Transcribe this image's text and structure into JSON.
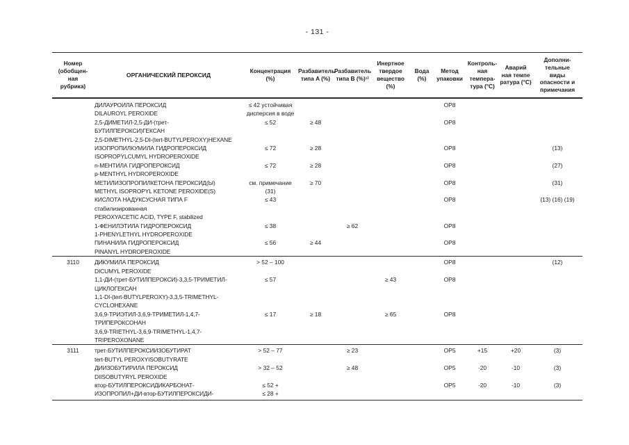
{
  "page": {
    "number_label": "- 131 -"
  },
  "table": {
    "headers": {
      "num": "Номер\n(обобщен-\nная\nрубрика)",
      "name": "ОРГАНИЧЕСКИЙ ПЕРОКСИД",
      "conc": "Концентрация\n(%)",
      "dil_a": "Разбавитель\nтипа A (%)",
      "dil_b": "Разбавитель\nтипа B (%)¹⁾",
      "inert": "Инертное\nтвердое\nвещество\n(%)",
      "water": "Вода\n(%)",
      "pack": "Метод\nупаковки",
      "ctrl": "Контроль-\nная\nтемпера-\nтура (°C)",
      "emerg": "Аварий\nная темпе\nратура (°C)",
      "rem": "Дополни-\nтельные\nвиды\nопасности и\nпримечания"
    },
    "rows": [
      {
        "num": "",
        "name": "ДИЛАУРОИЛА ПЕРОКСИД\nDILAUROYL PEROXIDE",
        "conc": "≤ 42 устойчивая\nдисперсия в воде",
        "dil_a": "",
        "dil_b": "",
        "inert": "",
        "water": "",
        "pack": "OP8",
        "ctrl": "",
        "emerg": "",
        "rem": ""
      },
      {
        "num": "",
        "name": "2,5-ДИМЕТИЛ-2,5-ДИ-(трет-\nБУТИЛПЕРОКСИ)ГЕКСАН\n2,5-DIMETHYL-2,5-DI-(tert-BUTYLPEROXY)HEXANE",
        "conc": "≤ 52",
        "dil_a": "≥ 48",
        "dil_b": "",
        "inert": "",
        "water": "",
        "pack": "OP8",
        "ctrl": "",
        "emerg": "",
        "rem": ""
      },
      {
        "num": "",
        "name": "ИЗОПРОПИЛКУМИЛА ГИДРОПЕРОКСИД\nISOPROPYLCUMYL HYDROPEROXIDE",
        "conc": "≤ 72",
        "dil_a": "≥ 28",
        "dil_b": "",
        "inert": "",
        "water": "",
        "pack": "OP8",
        "ctrl": "",
        "emerg": "",
        "rem": "(13)"
      },
      {
        "num": "",
        "name": "n-МЕНТИЛА ГИДРОПЕРОКСИД\np-MENTHYL HYDROPEROXIDE",
        "conc": "≤ 72",
        "dil_a": "≥ 28",
        "dil_b": "",
        "inert": "",
        "water": "",
        "pack": "OP8",
        "ctrl": "",
        "emerg": "",
        "rem": "(27)"
      },
      {
        "num": "",
        "name": "МЕТИЛИЗОПРОПИЛКЕТОНА ПЕРОКСИД(Ы)\nMETHYL ISOPROPYL KETONE PEROXIDE(S)",
        "conc": "см. примечание\n(31)",
        "dil_a": "≥ 70",
        "dil_b": "",
        "inert": "",
        "water": "",
        "pack": "OP8",
        "ctrl": "",
        "emerg": "",
        "rem": "(31)"
      },
      {
        "num": "",
        "name": "КИСЛОТА НАДУКСУСНАЯ ТИПА F\nстабилизированная\nPEROXYACETIC ACID, TYPE F, stabilized",
        "conc": "≤ 43",
        "dil_a": "",
        "dil_b": "",
        "inert": "",
        "water": "",
        "pack": "OP8",
        "ctrl": "",
        "emerg": "",
        "rem": "(13) (16) (19)"
      },
      {
        "num": "",
        "name": "1-ФЕНИЛЭТИЛА ГИДРОПЕРОКСИД\n1-PHENYLETHYL HYDROPEROXIDE",
        "conc": "≤ 38",
        "dil_a": "",
        "dil_b": "≥ 62",
        "inert": "",
        "water": "",
        "pack": "OP8",
        "ctrl": "",
        "emerg": "",
        "rem": ""
      },
      {
        "num": "",
        "name": "ПИНАНИЛА ГИДРОПЕРОКСИД\nPINANYL HYDROPEROXIDE",
        "conc": "≤ 56",
        "dil_a": "≥ 44",
        "dil_b": "",
        "inert": "",
        "water": "",
        "pack": "OP8",
        "ctrl": "",
        "emerg": "",
        "rem": ""
      },
      {
        "num": "3110",
        "sep": true,
        "name": "ДИКУМИЛА ПЕРОКСИД\nDICUMYL PEROXIDE",
        "conc": "> 52 – 100",
        "dil_a": "",
        "dil_b": "",
        "inert": "",
        "water": "",
        "pack": "OP8",
        "ctrl": "",
        "emerg": "",
        "rem": "(12)"
      },
      {
        "num": "",
        "name": "1,1-ДИ-(трет-БУТИЛПЕРОКСИ)-3,3,5-ТРИМЕТИЛ-\nЦИКЛОГЕКСАН\n1,1-DI-(tert-BUTYLPEROXY)-3,3,5-TRIMETHYL-\nCYCLOHEXANE",
        "conc": "≤ 57",
        "dil_a": "",
        "dil_b": "",
        "inert": "≥ 43",
        "water": "",
        "pack": "OP8",
        "ctrl": "",
        "emerg": "",
        "rem": ""
      },
      {
        "num": "",
        "name": "3,6,9-ТРИЭТИЛ-3,6,9-ТРИМЕТИЛ-1,4,7-\nТРИПЕРОКСОНАН\n3,6,9-TRIETHYL-3,6,9-TRIMETHYL-1,4,7-\nTRIPEROXONANE",
        "conc": "≤ 17",
        "dil_a": "≥ 18",
        "dil_b": "",
        "inert": "≥ 65",
        "water": "",
        "pack": "OP8",
        "ctrl": "",
        "emerg": "",
        "rem": ""
      },
      {
        "num": "3111",
        "sep": true,
        "name": "трет-БУТИЛПЕРОКСИИЗОБУТИРАТ\ntert-BUTYL PEROXYISOBUTYRATE",
        "conc": "> 52 – 77",
        "dil_a": "",
        "dil_b": "≥ 23",
        "inert": "",
        "water": "",
        "pack": "OP5",
        "ctrl": "+15",
        "emerg": "+20",
        "rem": "(3)"
      },
      {
        "num": "",
        "name": "ДИИЗОБУТИРИЛА ПЕРОКСИД\nDIISOBUTYRYL PEROXIDE",
        "conc": "> 32 – 52",
        "dil_a": "",
        "dil_b": "≥ 48",
        "inert": "",
        "water": "",
        "pack": "OP5",
        "ctrl": "-20",
        "emerg": "-10",
        "rem": "(3)"
      },
      {
        "num": "",
        "name": "втор-БУТИЛПЕРОКСИДИКАРБОНАТ-\nИЗОПРОПИЛ+ДИ-втор-БУТИЛПЕРОКСИДИ-",
        "conc": "≤ 52 +\n≤ 28 +",
        "dil_a": "",
        "dil_b": "",
        "inert": "",
        "water": "",
        "pack": "OP5",
        "ctrl": "-20",
        "emerg": "-10",
        "rem": "(3)"
      }
    ]
  }
}
